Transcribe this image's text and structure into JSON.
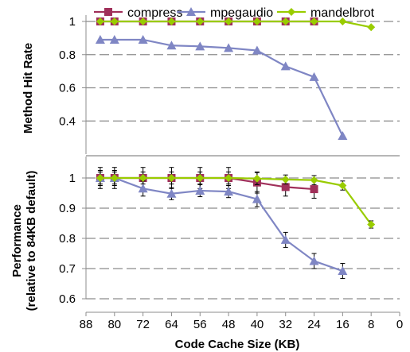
{
  "chart_data": [
    {
      "type": "line",
      "panel": "top",
      "ylabel": "Method Hit Rate",
      "ylim": [
        0.2,
        1.0
      ],
      "yticks": [
        0.4,
        0.6,
        0.8,
        1
      ],
      "ytick_labels": [
        "0.4",
        "0.6",
        "0.8",
        "1"
      ],
      "x_reversed": true,
      "grid": true,
      "series": [
        {
          "name": "compress",
          "color": "#a0305a",
          "marker": "square",
          "x": [
            84,
            80,
            72,
            64,
            56,
            48,
            40,
            32,
            24
          ],
          "y": [
            1,
            1,
            1,
            1,
            1,
            1,
            1,
            1,
            1
          ]
        },
        {
          "name": "mpegaudio",
          "color": "#7f86c4",
          "marker": "triangle",
          "x": [
            84,
            80,
            72,
            64,
            56,
            48,
            40,
            32,
            24,
            16
          ],
          "y": [
            0.89,
            0.89,
            0.89,
            0.855,
            0.85,
            0.84,
            0.825,
            0.73,
            0.665,
            0.31
          ]
        },
        {
          "name": "mandelbrot",
          "color": "#99cc00",
          "marker": "diamond",
          "x": [
            84,
            80,
            72,
            64,
            56,
            48,
            40,
            32,
            24,
            16,
            8
          ],
          "y": [
            1,
            1,
            1,
            1,
            1,
            1,
            1,
            1,
            1,
            1,
            0.965
          ]
        }
      ]
    },
    {
      "type": "line",
      "panel": "bottom",
      "ylabel_line1": "Performance",
      "ylabel_line2": "(relative to 84KB default)",
      "xlabel": "Code Cache Size (KB)",
      "xlim": [
        88,
        0
      ],
      "xticks": [
        88,
        80,
        72,
        64,
        56,
        48,
        40,
        32,
        24,
        16,
        8,
        0
      ],
      "xtick_labels": [
        "88",
        "80",
        "72",
        "64",
        "56",
        "48",
        "40",
        "32",
        "24",
        "16",
        "8",
        "0"
      ],
      "ylim": [
        0.6,
        1.05
      ],
      "yticks": [
        0.6,
        0.7,
        0.8,
        0.9,
        1
      ],
      "ytick_labels": [
        "0.6",
        "0.7",
        "0.8",
        "0.9",
        "1"
      ],
      "grid": true,
      "error_bars": true,
      "series": [
        {
          "name": "compress",
          "color": "#a0305a",
          "marker": "square",
          "x": [
            84,
            80,
            72,
            64,
            56,
            48,
            40,
            32,
            24
          ],
          "y": [
            1,
            1,
            1,
            1,
            1,
            1,
            0.985,
            0.97,
            0.963
          ],
          "err": [
            0.035,
            0.035,
            0.035,
            0.035,
            0.035,
            0.035,
            0.035,
            0.03,
            0.03
          ]
        },
        {
          "name": "mpegaudio",
          "color": "#7f86c4",
          "marker": "triangle",
          "x": [
            84,
            80,
            72,
            64,
            56,
            48,
            40,
            32,
            24,
            16
          ],
          "y": [
            1,
            1,
            0.965,
            0.948,
            0.958,
            0.955,
            0.93,
            0.795,
            0.725,
            0.692
          ],
          "err": [
            0.025,
            0.025,
            0.025,
            0.02,
            0.02,
            0.02,
            0.025,
            0.025,
            0.025,
            0.025
          ]
        },
        {
          "name": "mandelbrot",
          "color": "#99cc00",
          "marker": "diamond",
          "x": [
            84,
            80,
            72,
            64,
            56,
            48,
            40,
            32,
            24,
            16,
            8
          ],
          "y": [
            1,
            1,
            1,
            1,
            1,
            1,
            0.998,
            0.995,
            0.993,
            0.975,
            0.846
          ],
          "err": [
            0.02,
            0.02,
            0.02,
            0.02,
            0.02,
            0.02,
            0.02,
            0.015,
            0.015,
            0.015,
            0.012
          ]
        }
      ]
    }
  ],
  "legend": {
    "placement": "top",
    "items": [
      "compress",
      "mpegaudio",
      "mandelbrot"
    ]
  }
}
